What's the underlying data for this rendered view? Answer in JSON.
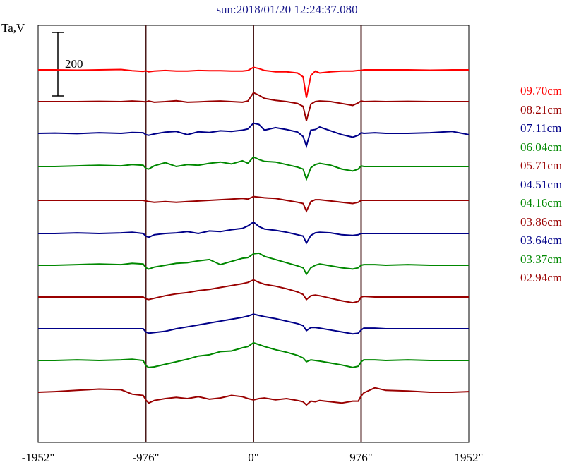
{
  "title": "sun:2018/01/20 12:24:37.080",
  "chart_data": {
    "type": "line",
    "title": "sun:2018/01/20 12:24:37.080",
    "ylabel": "Ta,V",
    "xlabel": "",
    "x_ticks": [
      "-1952\"",
      "-976\"",
      "0\"",
      "976\"",
      "1952\""
    ],
    "x_tick_values": [
      -1952,
      -976,
      0,
      976,
      1952
    ],
    "xlim": [
      -1952,
      1952
    ],
    "scale_bar_label": "200",
    "scale_bar_value": 200,
    "vertical_lines_at": [
      -976,
      0,
      976
    ],
    "x": [
      -1952,
      -1800,
      -1600,
      -1400,
      -1200,
      -1100,
      -1000,
      -976,
      -950,
      -900,
      -800,
      -700,
      -600,
      -500,
      -400,
      -300,
      -200,
      -100,
      -50,
      0,
      50,
      100,
      200,
      300,
      400,
      450,
      480,
      520,
      560,
      600,
      700,
      800,
      900,
      950,
      976,
      1000,
      1100,
      1200,
      1400,
      1600,
      1800,
      1952
    ],
    "series": [
      {
        "name": "09.70cm",
        "color": "#ff0000",
        "offset": 0,
        "values": [
          0,
          0,
          -1,
          0,
          1,
          -3,
          -5,
          -3,
          -6,
          -4,
          -2,
          -4,
          -4,
          -2,
          -3,
          -3,
          -4,
          -4,
          -2,
          8,
          4,
          -2,
          -6,
          -6,
          -10,
          -22,
          -88,
          -18,
          -4,
          -10,
          -6,
          -4,
          -4,
          -2,
          -2,
          0,
          0,
          0,
          0,
          -1,
          0,
          0
        ]
      },
      {
        "name": "08.21cm",
        "color": "#990000",
        "offset": 45,
        "values": [
          0,
          0,
          0,
          1,
          0,
          2,
          0,
          -1,
          2,
          -2,
          0,
          3,
          -2,
          -1,
          1,
          2,
          0,
          -2,
          2,
          28,
          20,
          10,
          4,
          0,
          -6,
          -15,
          -60,
          -8,
          0,
          2,
          0,
          -6,
          -12,
          -4,
          2,
          0,
          1,
          0,
          1,
          0,
          0,
          0
        ]
      },
      {
        "name": "07.11cm",
        "color": "#000088",
        "offset": 90,
        "values": [
          0,
          1,
          -1,
          2,
          0,
          3,
          2,
          -4,
          -6,
          -2,
          4,
          6,
          -4,
          5,
          3,
          8,
          6,
          10,
          14,
          32,
          28,
          10,
          18,
          12,
          4,
          -10,
          -40,
          10,
          12,
          20,
          8,
          -4,
          -12,
          -6,
          2,
          0,
          2,
          0,
          0,
          2,
          6,
          -4
        ]
      },
      {
        "name": "06.04cm",
        "color": "#008800",
        "offset": 137,
        "values": [
          0,
          0,
          2,
          4,
          2,
          6,
          4,
          -6,
          -8,
          2,
          12,
          0,
          6,
          4,
          10,
          14,
          8,
          18,
          10,
          30,
          22,
          16,
          14,
          6,
          -2,
          -8,
          -40,
          -4,
          6,
          10,
          4,
          -8,
          -14,
          -8,
          2,
          0,
          0,
          0,
          0,
          0,
          0,
          0
        ]
      },
      {
        "name": "05.71cm",
        "color": "#990000",
        "offset": 185,
        "values": [
          0,
          0,
          0,
          0,
          0,
          0,
          0,
          -2,
          -4,
          -6,
          -4,
          -6,
          -4,
          -2,
          0,
          2,
          4,
          6,
          4,
          12,
          10,
          8,
          6,
          0,
          -6,
          -10,
          -34,
          -4,
          2,
          2,
          -2,
          -6,
          -10,
          -6,
          0,
          0,
          0,
          0,
          0,
          0,
          0,
          0
        ]
      },
      {
        "name": "04.51cm",
        "color": "#000088",
        "offset": 232,
        "values": [
          0,
          0,
          2,
          0,
          2,
          4,
          0,
          -8,
          -12,
          -4,
          0,
          2,
          6,
          0,
          8,
          6,
          12,
          16,
          24,
          36,
          22,
          14,
          10,
          4,
          -4,
          -8,
          -30,
          -6,
          2,
          4,
          2,
          -4,
          -6,
          -4,
          0,
          0,
          0,
          0,
          0,
          0,
          0,
          0
        ]
      },
      {
        "name": "04.16cm",
        "color": "#008800",
        "offset": 277,
        "values": [
          0,
          0,
          2,
          4,
          2,
          6,
          4,
          -8,
          -12,
          -6,
          0,
          6,
          8,
          14,
          18,
          2,
          12,
          22,
          24,
          36,
          38,
          28,
          18,
          8,
          -2,
          -8,
          -28,
          -8,
          0,
          4,
          -2,
          -8,
          -12,
          -8,
          0,
          2,
          2,
          0,
          2,
          0,
          0,
          0
        ]
      },
      {
        "name": "03.86cm",
        "color": "#990000",
        "offset": 322,
        "values": [
          0,
          0,
          0,
          0,
          0,
          0,
          0,
          -6,
          -8,
          -4,
          4,
          10,
          14,
          20,
          24,
          30,
          36,
          42,
          46,
          54,
          46,
          40,
          34,
          26,
          16,
          8,
          -8,
          4,
          6,
          4,
          -4,
          -12,
          -18,
          -14,
          0,
          2,
          0,
          0,
          0,
          0,
          0,
          0
        ]
      },
      {
        "name": "03.64cm",
        "color": "#000088",
        "offset": 367,
        "values": [
          0,
          0,
          0,
          0,
          0,
          0,
          0,
          -10,
          -14,
          -12,
          -8,
          0,
          6,
          12,
          18,
          24,
          30,
          36,
          40,
          46,
          42,
          38,
          32,
          24,
          16,
          10,
          -6,
          4,
          4,
          2,
          -4,
          -10,
          -16,
          -14,
          -4,
          2,
          2,
          0,
          0,
          0,
          0,
          0
        ]
      },
      {
        "name": "03.37cm",
        "color": "#008800",
        "offset": 412,
        "values": [
          0,
          0,
          2,
          0,
          2,
          4,
          0,
          -16,
          -22,
          -20,
          -12,
          -4,
          4,
          14,
          18,
          28,
          30,
          40,
          44,
          56,
          50,
          44,
          34,
          26,
          16,
          8,
          -4,
          2,
          0,
          -2,
          -8,
          -14,
          -22,
          -18,
          -4,
          2,
          2,
          0,
          2,
          0,
          0,
          0
        ]
      },
      {
        "name": "02.94cm",
        "color": "#990000",
        "offset": 457,
        "values": [
          0,
          2,
          6,
          10,
          8,
          -6,
          -10,
          -24,
          -34,
          -26,
          -20,
          -16,
          -20,
          -14,
          -22,
          -18,
          -10,
          -14,
          -20,
          -24,
          -20,
          -18,
          -24,
          -20,
          -26,
          -30,
          -40,
          -28,
          -30,
          -26,
          -30,
          -34,
          -28,
          -28,
          -12,
          -2,
          14,
          6,
          4,
          0,
          0,
          2
        ]
      }
    ],
    "legend_position": "right",
    "grid": false
  }
}
